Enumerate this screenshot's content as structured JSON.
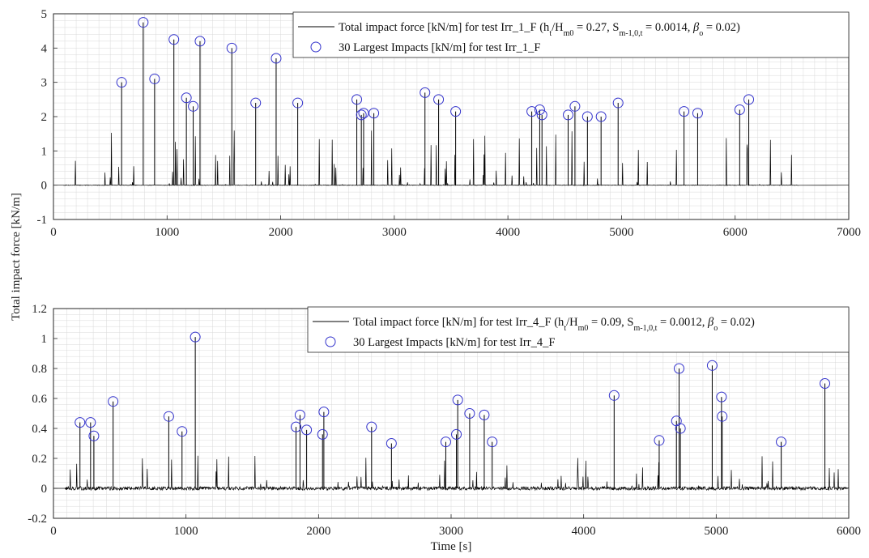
{
  "figure": {
    "shared_ylabel": "Total impact force [kN/m]",
    "xlabel": "Time [s]"
  },
  "colors": {
    "signal": "#000000",
    "marker": "#3333cc",
    "grid": "#d9d9d9",
    "axes": "#262626"
  },
  "chart_data": [
    {
      "type": "line",
      "id": "top",
      "xlim": [
        0,
        7000
      ],
      "ylim": [
        -1,
        5
      ],
      "xticks": [
        0,
        1000,
        2000,
        3000,
        4000,
        5000,
        6000,
        7000
      ],
      "yticks": [
        -1,
        0,
        1,
        2,
        3,
        4,
        5
      ],
      "xtick_labels": [
        "0",
        "1000",
        "2000",
        "3000",
        "4000",
        "5000",
        "6000",
        "7000"
      ],
      "ytick_labels": [
        "-1",
        "0",
        "1",
        "2",
        "3",
        "4",
        "5"
      ],
      "grid": "minor",
      "legend_placement": "top-right",
      "signal_end_s": 6560,
      "legend": {
        "series_label": "Total impact force [kN/m] for test Irr_1_F (h",
        "series_ratio_sub1": "t",
        "series_ratio_mid": "/H",
        "series_ratio_sub2": "m0",
        "series_mid": " = 0.27, S",
        "series_s_sub": "m-1,0,t",
        "series_s_val": " = 0.0014, ",
        "series_beta": "β",
        "series_beta_sub": "o",
        "series_end": " = 0.02)",
        "peaks_label": "30 Largest Impacts [kN/m] for test Irr_1_F"
      },
      "peaks": {
        "t": [
          600,
          790,
          890,
          1060,
          1170,
          1230,
          1290,
          1570,
          1780,
          1960,
          2150,
          2670,
          2710,
          2730,
          2820,
          3270,
          3390,
          3540,
          4210,
          4280,
          4300,
          4530,
          4590,
          4700,
          4820,
          4970,
          5550,
          5670,
          6040,
          6120
        ],
        "force": [
          3.0,
          4.75,
          3.1,
          4.25,
          2.55,
          2.3,
          4.2,
          4.0,
          2.4,
          3.7,
          2.4,
          2.5,
          2.05,
          2.1,
          2.1,
          2.7,
          2.5,
          2.15,
          2.15,
          2.2,
          2.05,
          2.05,
          2.3,
          2.0,
          2.0,
          2.4,
          2.15,
          2.1,
          2.2,
          2.5
        ]
      }
    },
    {
      "type": "line",
      "id": "bottom",
      "xlim": [
        0,
        6000
      ],
      "ylim": [
        -0.2,
        1.2
      ],
      "xticks": [
        0,
        1000,
        2000,
        3000,
        4000,
        5000,
        6000
      ],
      "yticks": [
        -0.2,
        0,
        0.2,
        0.4,
        0.6,
        0.8,
        1.0,
        1.2
      ],
      "xtick_labels": [
        "0",
        "1000",
        "2000",
        "3000",
        "4000",
        "5000",
        "6000"
      ],
      "ytick_labels": [
        "-0.2",
        "0",
        "0.2",
        "0.4",
        "0.6",
        "0.8",
        "1",
        "1.2"
      ],
      "grid": "minor",
      "legend_placement": "top-right",
      "signal_end_s": 6000,
      "legend": {
        "series_label": "Total impact force [kN/m] for test Irr_4_F (h",
        "series_ratio_sub1": "t",
        "series_ratio_mid": "/H",
        "series_ratio_sub2": "m0",
        "series_mid": " = 0.09, S",
        "series_s_sub": "m-1,0,t",
        "series_s_val": " = 0.0012, ",
        "series_beta": "β",
        "series_beta_sub": "o",
        "series_end": " = 0.02)",
        "peaks_label": "30 Largest Impacts [kN/m] for test Irr_4_F"
      },
      "peaks": {
        "t": [
          200,
          280,
          305,
          450,
          870,
          970,
          1070,
          1830,
          1860,
          1910,
          2030,
          2040,
          2400,
          2550,
          2960,
          3040,
          3050,
          3140,
          3250,
          3310,
          4230,
          4570,
          4700,
          4720,
          4730,
          4970,
          5040,
          5045,
          5490,
          5820
        ],
        "force": [
          0.44,
          0.44,
          0.35,
          0.58,
          0.48,
          0.38,
          1.01,
          0.41,
          0.49,
          0.39,
          0.36,
          0.51,
          0.41,
          0.3,
          0.31,
          0.36,
          0.59,
          0.5,
          0.49,
          0.31,
          0.62,
          0.32,
          0.45,
          0.8,
          0.4,
          0.82,
          0.61,
          0.48,
          0.31,
          0.7
        ]
      }
    }
  ]
}
